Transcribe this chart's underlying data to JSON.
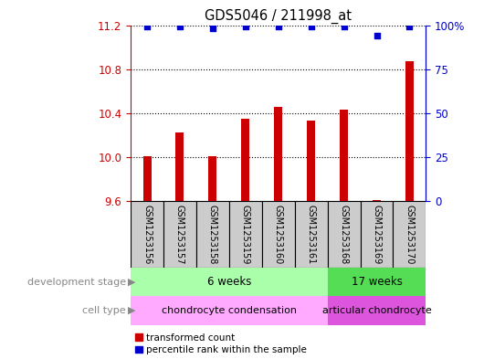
{
  "title": "GDS5046 / 211998_at",
  "samples": [
    "GSM1253156",
    "GSM1253157",
    "GSM1253158",
    "GSM1253159",
    "GSM1253160",
    "GSM1253161",
    "GSM1253168",
    "GSM1253169",
    "GSM1253170"
  ],
  "transformed_counts": [
    10.01,
    10.22,
    10.01,
    10.35,
    10.46,
    10.33,
    10.43,
    9.61,
    10.87
  ],
  "percentile_ranks": [
    99,
    99,
    98,
    99,
    99,
    99,
    99,
    94,
    99
  ],
  "y_min": 9.6,
  "y_max": 11.2,
  "y_ticks": [
    9.6,
    10.0,
    10.4,
    10.8,
    11.2
  ],
  "y2_ticks": [
    0,
    25,
    50,
    75,
    100
  ],
  "y2_tick_positions": [
    9.6,
    10.0,
    10.4,
    10.8,
    11.2
  ],
  "bar_color": "#cc0000",
  "dot_color": "#0000cc",
  "bar_bottom": 9.6,
  "dev_stage_groups": [
    {
      "label": "6 weeks",
      "start": 0,
      "end": 6,
      "color": "#aaffaa"
    },
    {
      "label": "17 weeks",
      "start": 6,
      "end": 9,
      "color": "#55dd55"
    }
  ],
  "cell_type_groups": [
    {
      "label": "chondrocyte condensation",
      "start": 0,
      "end": 6,
      "color": "#ffaaff"
    },
    {
      "label": "articular chondrocyte",
      "start": 6,
      "end": 9,
      "color": "#dd55dd"
    }
  ],
  "legend_bar_label": "transformed count",
  "legend_dot_label": "percentile rank within the sample",
  "left_label_dev": "development stage",
  "left_label_cell": "cell type",
  "title_color": "#000000",
  "left_axis_color": "#cc0000",
  "right_axis_color": "#0000cc",
  "grid_color": "#000000",
  "sample_bg_color": "#cccccc",
  "bar_width": 0.25
}
